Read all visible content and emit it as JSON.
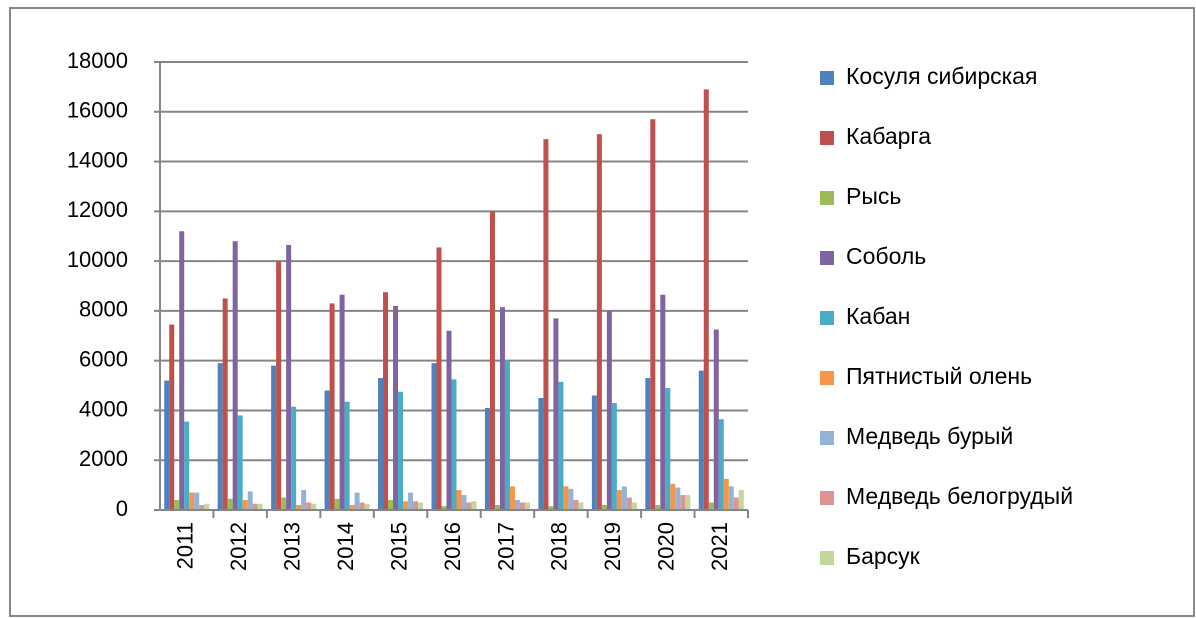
{
  "chart_data": {
    "type": "bar",
    "categories": [
      "2011",
      "2012",
      "2013",
      "2014",
      "2015",
      "2016",
      "2017",
      "2018",
      "2019",
      "2020",
      "2021"
    ],
    "series": [
      {
        "name": "Косуля сибирская",
        "color": "#4f81bd",
        "values": [
          5200,
          5900,
          5800,
          4800,
          5300,
          5900,
          4100,
          4500,
          4600,
          5300,
          5600
        ]
      },
      {
        "name": "Кабарга",
        "color": "#c0504d",
        "values": [
          7450,
          8500,
          10000,
          8300,
          8750,
          10550,
          12000,
          14900,
          15100,
          15700,
          16900
        ]
      },
      {
        "name": "Рысь",
        "color": "#9bbb59",
        "values": [
          400,
          450,
          500,
          450,
          400,
          150,
          200,
          150,
          200,
          200,
          300
        ]
      },
      {
        "name": "Соболь",
        "color": "#8064a2",
        "values": [
          11200,
          10800,
          10650,
          8650,
          8200,
          7200,
          8150,
          7700,
          8000,
          8650,
          7250
        ]
      },
      {
        "name": "Кабан",
        "color": "#4bacc6",
        "values": [
          3550,
          3800,
          4150,
          4350,
          4750,
          5250,
          6000,
          5150,
          4300,
          4900,
          3650
        ]
      },
      {
        "name": "Пятнистый олень",
        "color": "#f79646",
        "values": [
          700,
          400,
          200,
          200,
          350,
          800,
          950,
          950,
          800,
          1050,
          1250
        ]
      },
      {
        "name": "Медведь бурый",
        "color": "#95b3d7",
        "values": [
          700,
          750,
          800,
          700,
          700,
          600,
          400,
          850,
          950,
          900,
          950
        ]
      },
      {
        "name": "Медведь белогрудый",
        "color": "#da9694",
        "values": [
          200,
          250,
          300,
          300,
          350,
          300,
          300,
          400,
          500,
          600,
          500
        ]
      },
      {
        "name": "Барсук",
        "color": "#c3d69b",
        "values": [
          250,
          250,
          250,
          250,
          300,
          350,
          300,
          300,
          300,
          600,
          800
        ]
      }
    ],
    "ylim": [
      0,
      18000
    ],
    "yticks": [
      0,
      2000,
      4000,
      6000,
      8000,
      10000,
      12000,
      14000,
      16000,
      18000
    ],
    "grid": true,
    "legend": "right"
  }
}
